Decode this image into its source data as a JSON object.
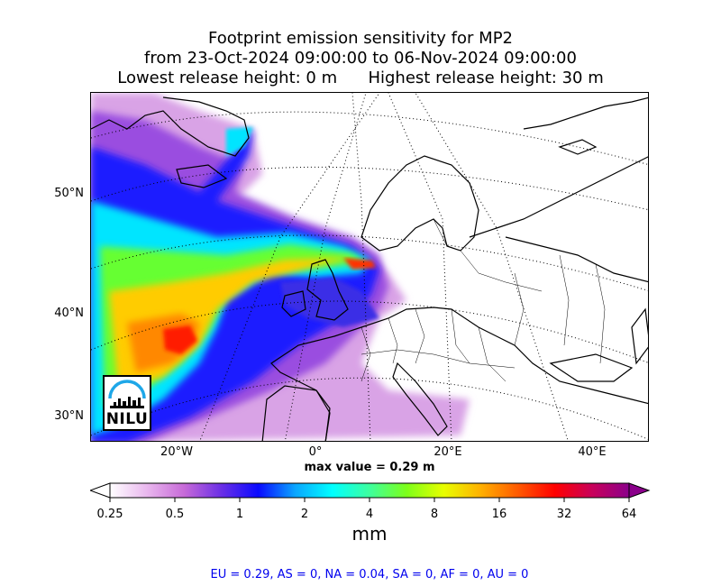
{
  "title": {
    "line1": "Footprint emission sensitivity for MP2",
    "line2": "from 23-Oct-2024 09:00:00 to 06-Nov-2024 09:00:00",
    "line3": "Lowest release height: 0 m      Highest release height: 30 m"
  },
  "map": {
    "lat_labels": [
      "50°N",
      "40°N",
      "30°N"
    ],
    "lon_labels": [
      "20°W",
      "0°",
      "20°E",
      "40°E"
    ],
    "max_value_text": "max value = 0.29 m",
    "logo_text": "NILU"
  },
  "colorbar": {
    "ticks": [
      "0.25",
      "0.5",
      "1",
      "2",
      "4",
      "8",
      "16",
      "32",
      "64"
    ],
    "unit": "mm",
    "colors": [
      "#ffffff",
      "#e9b7ee",
      "#c76ad8",
      "#6b2fe6",
      "#0a0aff",
      "#0aa6ff",
      "#00ffff",
      "#3dff9e",
      "#7dff1a",
      "#e8ff00",
      "#ffb000",
      "#ff5a00",
      "#ff0000",
      "#c8005a",
      "#8b008b"
    ]
  },
  "regions_text": "EU = 0.29,  AS = 0,  NA = 0.04,  SA = 0,  AF = 0,  AU = 0"
}
